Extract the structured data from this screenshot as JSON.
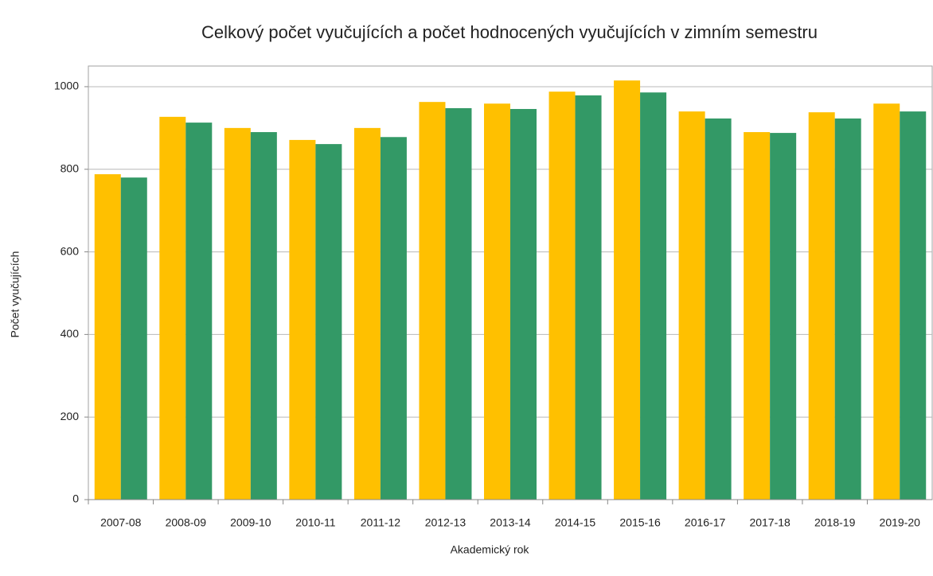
{
  "chart_data": {
    "type": "bar",
    "title": "Celkový počet vyučujících a počet hodnocených vyučujících v zimním semestru",
    "x_label": "Akademický rok",
    "y_label": "Počet  vyučujících",
    "categories": [
      "2007-08",
      "2008-09",
      "2009-10",
      "2010-11",
      "2011-12",
      "2012-13",
      "2013-14",
      "2014-15",
      "2015-16",
      "2016-17",
      "2017-18",
      "2018-19",
      "2019-20"
    ],
    "series": [
      {
        "color": "#ffc000",
        "values": [
          788,
          927,
          900,
          871,
          900,
          963,
          959,
          988,
          1015,
          940,
          890,
          938,
          959
        ]
      },
      {
        "color": "#339966",
        "values": [
          780,
          913,
          890,
          861,
          878,
          948,
          946,
          979,
          986,
          923,
          888,
          923,
          940
        ]
      }
    ],
    "ylim": [
      0,
      1050
    ],
    "yticks": [
      0,
      200,
      400,
      600,
      800,
      1000
    ],
    "grid": true
  }
}
